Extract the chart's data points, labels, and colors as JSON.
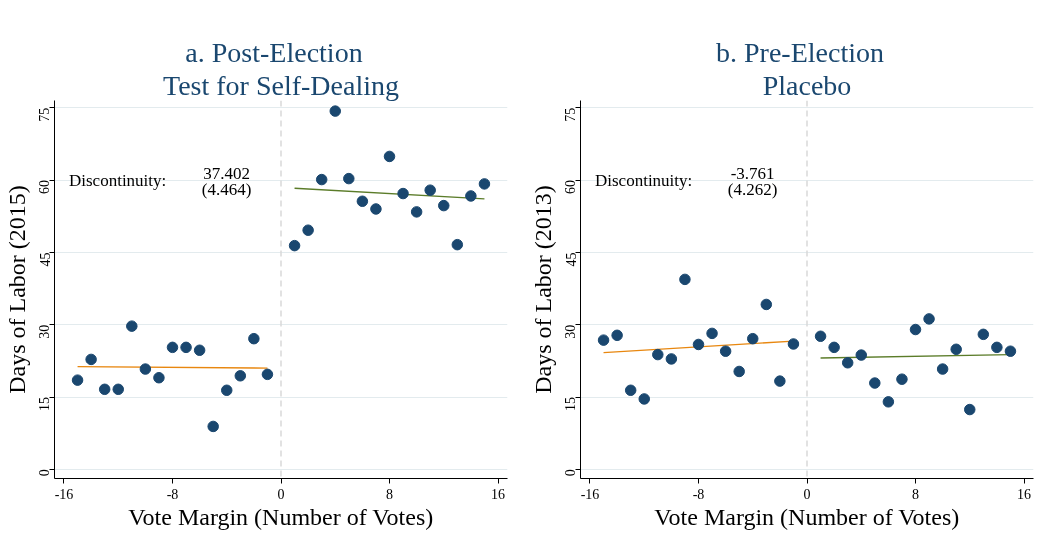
{
  "chart_data": [
    {
      "type": "scatter",
      "title": "a.   Post-Election",
      "subtitle": "Test for Self-Dealing",
      "xlabel": "Vote Margin (Number of Votes)",
      "ylabel": "Days of Labor (2015)",
      "xlim": [
        -16.7,
        16.7
      ],
      "ylim": [
        -1.9,
        76.5
      ],
      "xticks": [
        -16,
        -8,
        0,
        8,
        16
      ],
      "yticks": [
        0,
        15,
        30,
        45,
        60,
        75
      ],
      "grid": "y",
      "ref_lines": [
        {
          "axis": "x",
          "value": 0,
          "color": "#d9d9d9",
          "line_style": "dashed"
        }
      ],
      "annotations": [
        "Discontinuity:",
        "37.402",
        "(4.464)"
      ],
      "series": [
        {
          "marker": "circle",
          "color": "#1a476f",
          "x": [
            -15,
            -14,
            -13,
            -12,
            -11,
            -10,
            -9,
            -8,
            -7,
            -6,
            -5,
            -4,
            -3,
            -2,
            -1,
            1,
            2,
            3,
            4,
            5,
            6,
            7,
            8,
            9,
            10,
            11,
            12,
            13,
            14,
            15
          ],
          "values": [
            18.5,
            22.8,
            16.6,
            16.6,
            29.7,
            20.8,
            19.0,
            25.3,
            25.3,
            24.7,
            8.9,
            16.4,
            19.4,
            27.1,
            19.7,
            46.4,
            49.6,
            60.1,
            74.3,
            60.3,
            55.6,
            54.0,
            64.9,
            57.2,
            53.4,
            57.9,
            54.7,
            46.6,
            56.7,
            59.2
          ]
        },
        {
          "type": "line",
          "color": "#e8870f",
          "x": [
            -15,
            -1
          ],
          "values": [
            21.3,
            21.0
          ]
        },
        {
          "type": "line",
          "color": "#5b7c29",
          "x": [
            1,
            15
          ],
          "values": [
            58.3,
            56.1
          ]
        }
      ]
    },
    {
      "type": "scatter",
      "title": "b.   Pre-Election",
      "subtitle": "Placebo",
      "xlabel": "Vote Margin (Number of Votes)",
      "ylabel": "Days of Labor (2013)",
      "xlim": [
        -16.7,
        16.7
      ],
      "ylim": [
        -1.9,
        76.5
      ],
      "xticks": [
        -16,
        -8,
        0,
        8,
        16
      ],
      "yticks": [
        0,
        15,
        30,
        45,
        60,
        75
      ],
      "grid": "y",
      "ref_lines": [
        {
          "axis": "x",
          "value": 0,
          "color": "#d9d9d9",
          "line_style": "dashed"
        }
      ],
      "annotations": [
        "Discontinuity:",
        "-3.761",
        "(4.262)"
      ],
      "series": [
        {
          "marker": "circle",
          "color": "#1a476f",
          "x": [
            -15,
            -14,
            -13,
            -12,
            -11,
            -10,
            -9,
            -8,
            -7,
            -6,
            -5,
            -4,
            -3,
            -2,
            -1,
            1,
            2,
            3,
            4,
            5,
            6,
            7,
            8,
            9,
            10,
            11,
            12,
            13,
            14,
            15
          ],
          "values": [
            26.8,
            27.8,
            16.4,
            14.6,
            23.8,
            22.9,
            39.4,
            25.9,
            28.2,
            24.5,
            20.3,
            27.1,
            34.2,
            18.3,
            26.0,
            27.6,
            25.3,
            22.1,
            23.7,
            17.9,
            14.0,
            18.7,
            29.0,
            31.2,
            20.8,
            24.9,
            12.4,
            28.0,
            25.3,
            24.5
          ]
        },
        {
          "type": "line",
          "color": "#e8870f",
          "x": [
            -15,
            -1
          ],
          "values": [
            24.2,
            26.6
          ]
        },
        {
          "type": "line",
          "color": "#5b7c29",
          "x": [
            1,
            15
          ],
          "values": [
            23.1,
            23.8
          ]
        }
      ]
    }
  ]
}
